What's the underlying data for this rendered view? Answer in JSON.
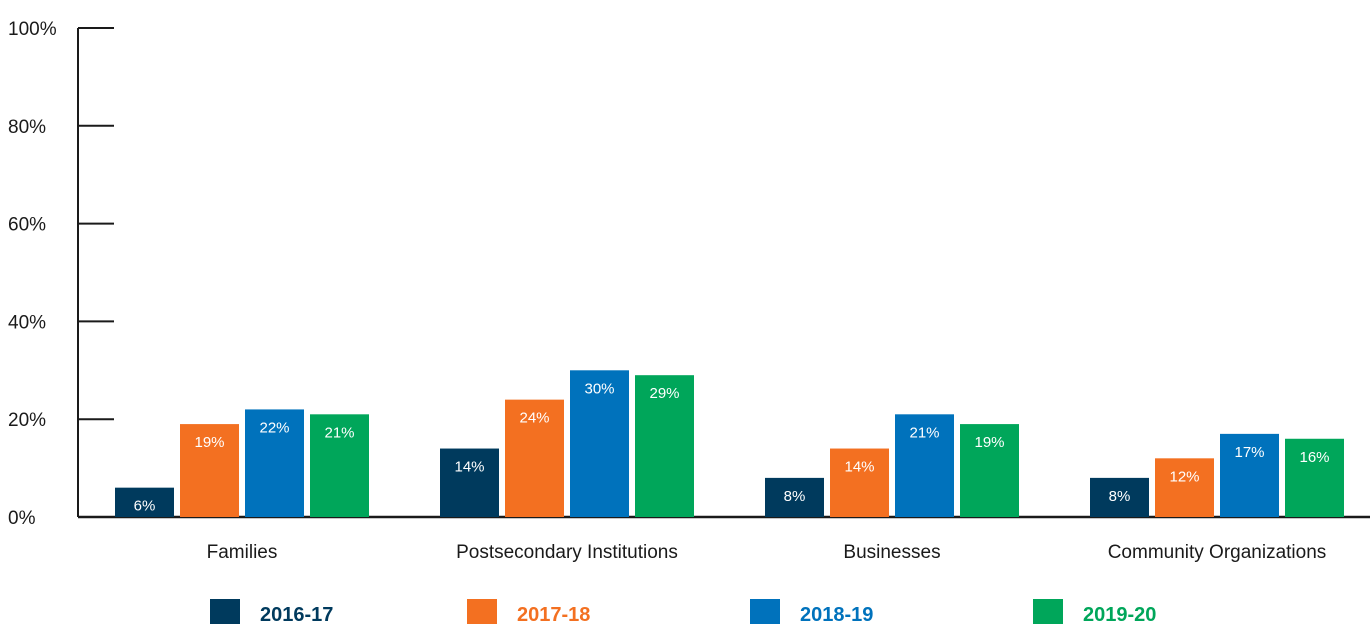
{
  "chart_data": {
    "type": "bar",
    "title": "",
    "xlabel": "",
    "ylabel": "",
    "ylim": [
      0,
      100
    ],
    "yticks": [
      "0%",
      "20%",
      "40%",
      "60%",
      "80%",
      "100%"
    ],
    "categories": [
      "Families",
      "Postsecondary Institutions",
      "Businesses",
      "Community Organizations"
    ],
    "series": [
      {
        "name": "2016-17",
        "color": "#003a5d",
        "values": [
          6,
          14,
          8,
          8
        ],
        "labels": [
          "6%",
          "14%",
          "8%",
          "8%"
        ]
      },
      {
        "name": "2017-18",
        "color": "#f37021",
        "values": [
          19,
          24,
          14,
          12
        ],
        "labels": [
          "19%",
          "24%",
          "14%",
          "12%"
        ]
      },
      {
        "name": "2018-19",
        "color": "#0072bc",
        "values": [
          22,
          30,
          21,
          17
        ],
        "labels": [
          "22%",
          "30%",
          "21%",
          "17%"
        ]
      },
      {
        "name": "2019-20",
        "color": "#00a65a",
        "values": [
          21,
          29,
          19,
          16
        ],
        "labels": [
          "21%",
          "29%",
          "19%",
          "16%"
        ]
      }
    ],
    "grid": false,
    "legend_position": "bottom"
  }
}
